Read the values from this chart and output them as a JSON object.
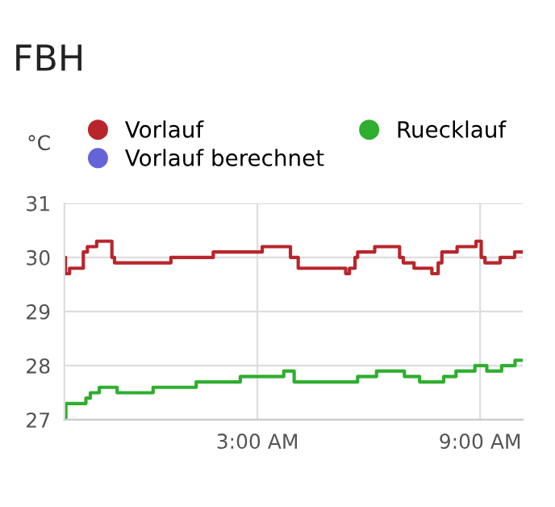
{
  "chart_data": {
    "type": "step",
    "title": "FBH",
    "ylabel": "°C",
    "xlim": [
      -2.2,
      10.15
    ],
    "xticks": [
      {
        "value": 3,
        "label": "3:00 AM"
      },
      {
        "value": 9,
        "label": "9:00 AM"
      }
    ],
    "ylim": [
      27,
      31
    ],
    "yticks": [
      27,
      28,
      29,
      30,
      31
    ],
    "grid": true,
    "legend": "top left",
    "marker": "none",
    "line_style": "solid",
    "series": [
      {
        "name": "Vorlauf",
        "color": "#b8262c",
        "x": [
          -2.2,
          -2.17,
          -2.06,
          -1.69,
          -1.58,
          -1.33,
          -0.92,
          -0.85,
          0.67,
          1.81,
          3.13,
          3.89,
          4.1,
          5.38,
          5.48,
          5.63,
          5.7,
          6.16,
          6.83,
          6.93,
          7.22,
          7.7,
          7.87,
          7.97,
          8.38,
          8.89,
          9.03,
          9.13,
          9.54,
          9.93,
          10.15
        ],
        "values": [
          30.0,
          29.7,
          29.8,
          30.1,
          30.2,
          30.3,
          30.0,
          29.9,
          30.0,
          30.1,
          30.2,
          30.0,
          29.8,
          29.7,
          29.8,
          30.0,
          30.1,
          30.2,
          30.0,
          29.9,
          29.8,
          29.7,
          29.9,
          30.1,
          30.2,
          30.3,
          30.0,
          29.9,
          30.0,
          30.1,
          30.1
        ]
      },
      {
        "name": "Ruecklauf",
        "color": "#2fae2f",
        "x": [
          -2.2,
          -2.16,
          -1.62,
          -1.5,
          -1.26,
          -0.78,
          0.19,
          1.35,
          2.54,
          3.71,
          3.99,
          5.7,
          6.21,
          6.96,
          7.37,
          8.02,
          8.35,
          8.86,
          9.18,
          9.58,
          9.94,
          10.15
        ],
        "values": [
          27.0,
          27.3,
          27.4,
          27.5,
          27.6,
          27.5,
          27.6,
          27.7,
          27.8,
          27.9,
          27.7,
          27.8,
          27.9,
          27.8,
          27.7,
          27.8,
          27.9,
          28.0,
          27.9,
          28.0,
          28.1,
          28.1
        ]
      },
      {
        "name": "Vorlauf berechnet",
        "color": "#6464d8"
      }
    ]
  }
}
